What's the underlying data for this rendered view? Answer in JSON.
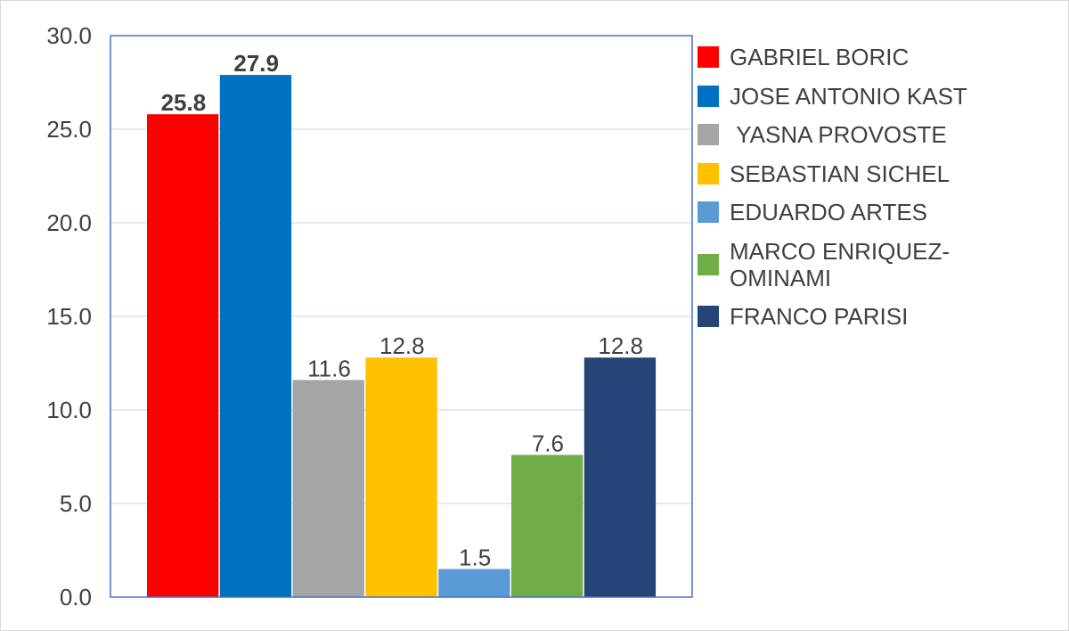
{
  "chart_data": {
    "type": "bar",
    "ylim": [
      0,
      30
    ],
    "y_ticks": [
      "0.0",
      "5.0",
      "10.0",
      "15.0",
      "20.0",
      "25.0",
      "30.0"
    ],
    "y_tick_values": [
      0,
      5,
      10,
      15,
      20,
      25,
      30
    ],
    "grid": true,
    "legend_position": "right",
    "series": [
      {
        "name": "GABRIEL BORIC",
        "value": 25.8,
        "label": "25.8",
        "color": "#ff0000",
        "bold_label": true
      },
      {
        "name": "JOSE ANTONIO KAST",
        "value": 27.9,
        "label": "27.9",
        "color": "#0070c0",
        "bold_label": true
      },
      {
        "name": " YASNA PROVOSTE",
        "value": 11.6,
        "label": "11.6",
        "color": "#a5a5a5",
        "bold_label": false
      },
      {
        "name": "SEBASTIAN SICHEL",
        "value": 12.8,
        "label": "12.8",
        "color": "#ffc000",
        "bold_label": false
      },
      {
        "name": "EDUARDO ARTES",
        "value": 1.5,
        "label": "1.5",
        "color": "#5b9bd5",
        "bold_label": false
      },
      {
        "name": "MARCO ENRIQUEZ-OMINAMI",
        "value": 7.6,
        "label": "7.6",
        "color": "#70ad47",
        "bold_label": false
      },
      {
        "name": "FRANCO PARISI",
        "value": 12.8,
        "label": "12.8",
        "color": "#264478",
        "bold_label": false
      }
    ]
  }
}
